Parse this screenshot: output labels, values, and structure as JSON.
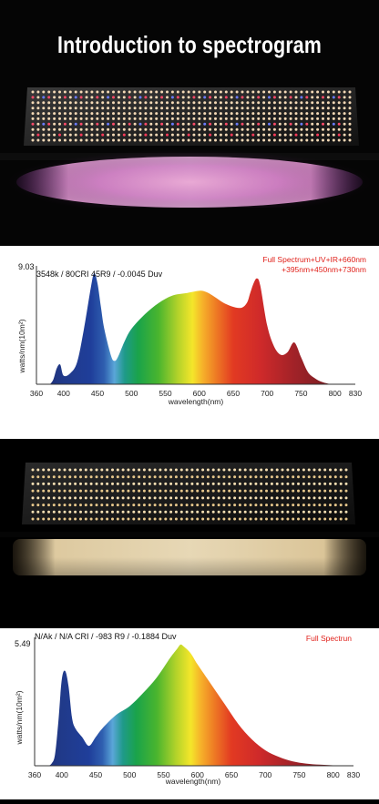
{
  "page": {
    "title": "Introduction to spectrogram"
  },
  "chart_data": [
    {
      "type": "area",
      "header": "3548k / 80CRI 45R9 / -0.0045 Duv",
      "spectrum_label_line1": "Full Spectrum+UV+IR+660nm",
      "spectrum_label_line2": "+395nm+450nm+730nm",
      "ymax_label": "9.03",
      "xlabel": "wavelength(nm)",
      "ylabel": "watts/nm(10m²)",
      "xlim": [
        360,
        830
      ],
      "ylim": [
        0,
        9.03
      ],
      "x_ticks": [
        "360",
        "400",
        "450",
        "500",
        "550",
        "600",
        "650",
        "700",
        "750",
        "800",
        "830"
      ],
      "x": [
        380,
        385,
        390,
        395,
        400,
        410,
        420,
        430,
        440,
        445,
        450,
        455,
        460,
        470,
        475,
        480,
        490,
        500,
        520,
        540,
        560,
        580,
        600,
        610,
        620,
        640,
        660,
        670,
        675,
        680,
        685,
        690,
        700,
        710,
        720,
        730,
        740,
        750,
        760,
        770,
        780,
        790,
        800
      ],
      "y": [
        0,
        0.4,
        1.3,
        1.6,
        0.7,
        0.9,
        1.8,
        4.5,
        7.8,
        9.03,
        8.2,
        6.3,
        4.5,
        2.3,
        1.9,
        2.2,
        3.5,
        4.5,
        5.7,
        6.6,
        7.2,
        7.4,
        7.6,
        7.5,
        7.2,
        6.5,
        6.2,
        6.6,
        7.4,
        8.2,
        8.6,
        8.0,
        4.8,
        3.1,
        2.4,
        2.6,
        3.4,
        2.2,
        1.0,
        0.5,
        0.2,
        0.05,
        0
      ]
    },
    {
      "type": "area",
      "header": "N/Ak / N/A CRI / -983 R9 / -0.1884 Duv",
      "spectrum_label_line1": "Full Spectrun",
      "ymax_label": "5.49",
      "xlabel": "wavelength(nm)",
      "ylabel": "watts/nm(10m²)",
      "xlim": [
        360,
        830
      ],
      "ylim": [
        0,
        5.49
      ],
      "x_ticks": [
        "360",
        "400",
        "450",
        "500",
        "550",
        "600",
        "650",
        "700",
        "750",
        "800",
        "830"
      ],
      "x": [
        380,
        385,
        390,
        395,
        400,
        405,
        410,
        415,
        420,
        430,
        440,
        450,
        460,
        480,
        500,
        520,
        540,
        560,
        570,
        575,
        580,
        590,
        600,
        620,
        640,
        660,
        680,
        700,
        720,
        740,
        760,
        780,
        800,
        820
      ],
      "y": [
        0,
        0.1,
        0.5,
        2.0,
        3.9,
        4.3,
        3.6,
        2.2,
        1.7,
        1.3,
        0.9,
        1.3,
        1.7,
        2.3,
        2.7,
        3.3,
        4.0,
        4.9,
        5.3,
        5.49,
        5.4,
        5.1,
        4.6,
        3.7,
        2.8,
        1.9,
        1.2,
        0.7,
        0.4,
        0.2,
        0.1,
        0.05,
        0.02,
        0
      ]
    }
  ]
}
